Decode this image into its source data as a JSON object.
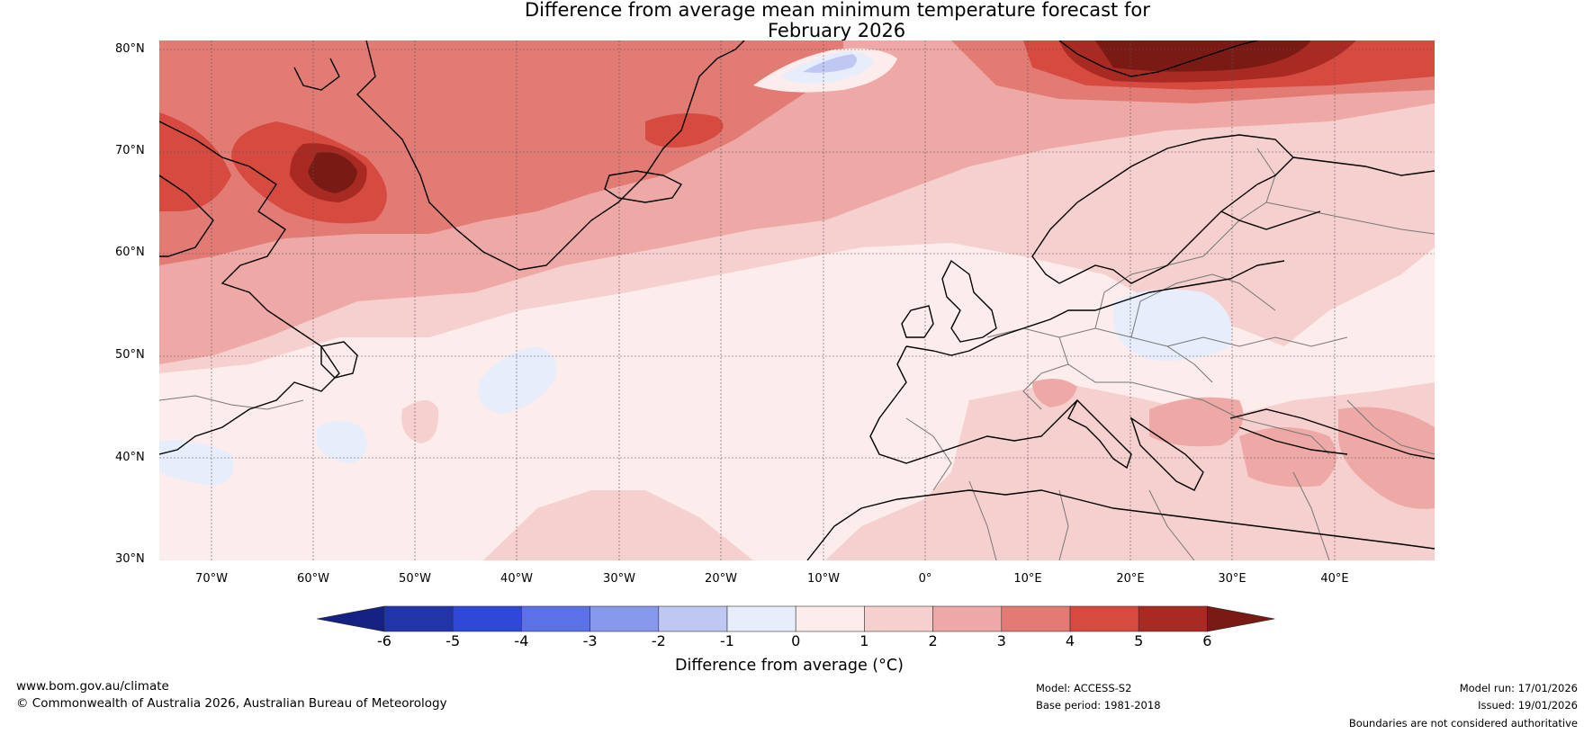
{
  "title": {
    "line1": "Difference from average mean minimum temperature forecast for",
    "line2": "February 2026"
  },
  "map": {
    "lat_ticks": [
      "80°N",
      "70°N",
      "60°N",
      "50°N",
      "40°N",
      "30°N"
    ],
    "lon_ticks": [
      "70°W",
      "60°W",
      "50°W",
      "40°W",
      "30°W",
      "20°W",
      "10°W",
      "0°",
      "10°E",
      "20°E",
      "30°E",
      "40°E"
    ],
    "land_outline_color": "#000000",
    "border_color": "#777777"
  },
  "colorbar": {
    "ticks": [
      "-6",
      "-5",
      "-4",
      "-3",
      "-2",
      "-1",
      "0",
      "1",
      "2",
      "3",
      "4",
      "5",
      "6"
    ],
    "colors": [
      "#2135a8",
      "#3048d8",
      "#5b72e6",
      "#8699ec",
      "#bfc8f3",
      "#e8edfb",
      "#fceceb",
      "#f6d0ce",
      "#eea9a6",
      "#e37b75",
      "#d64a40",
      "#a82a23"
    ],
    "under_color": "#152283",
    "over_color": "#7a1a15",
    "label": "Difference from average (°C)"
  },
  "footer": {
    "website": "www.bom.gov.au/climate",
    "copyright": "© Commonwealth of Australia 2026, Australian Bureau of Meteorology",
    "model": "Model: ACCESS-S2",
    "base_period": "Base period: 1981-2018",
    "model_run": "Model run: 17/01/2026",
    "issued": "Issued: 19/01/2026",
    "disclaimer": "Boundaries are not considered authoritative"
  }
}
